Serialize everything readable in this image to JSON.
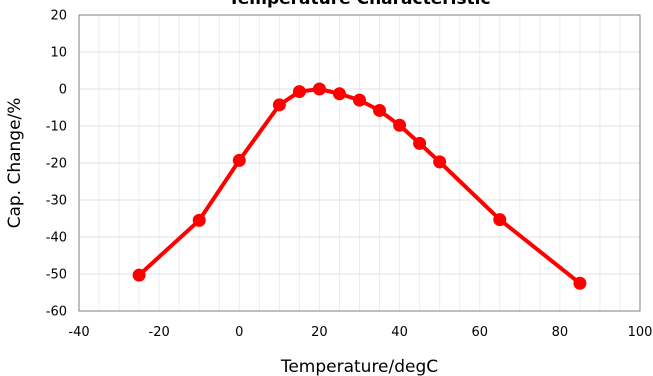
{
  "chart_data": {
    "type": "line",
    "title": "Temperature Characteristic",
    "xlabel": "Temperature/degC",
    "ylabel": "Cap. Change/%",
    "xlim": [
      -40,
      100
    ],
    "ylim": [
      -60,
      20
    ],
    "xticks": [
      -40,
      -20,
      0,
      20,
      40,
      60,
      80,
      100
    ],
    "yticks": [
      -60,
      -50,
      -40,
      -30,
      -20,
      -10,
      0,
      10,
      20
    ],
    "grid": true,
    "line_color": "#ff0000",
    "x": [
      -25,
      -10,
      0,
      10,
      15,
      20,
      25,
      30,
      35,
      40,
      45,
      50,
      65,
      85
    ],
    "y": [
      -50.3,
      -35.5,
      -19.3,
      -4.3,
      -0.7,
      0,
      -1.3,
      -3.0,
      -5.8,
      -9.8,
      -14.7,
      -19.7,
      -35.3,
      -52.5
    ]
  }
}
